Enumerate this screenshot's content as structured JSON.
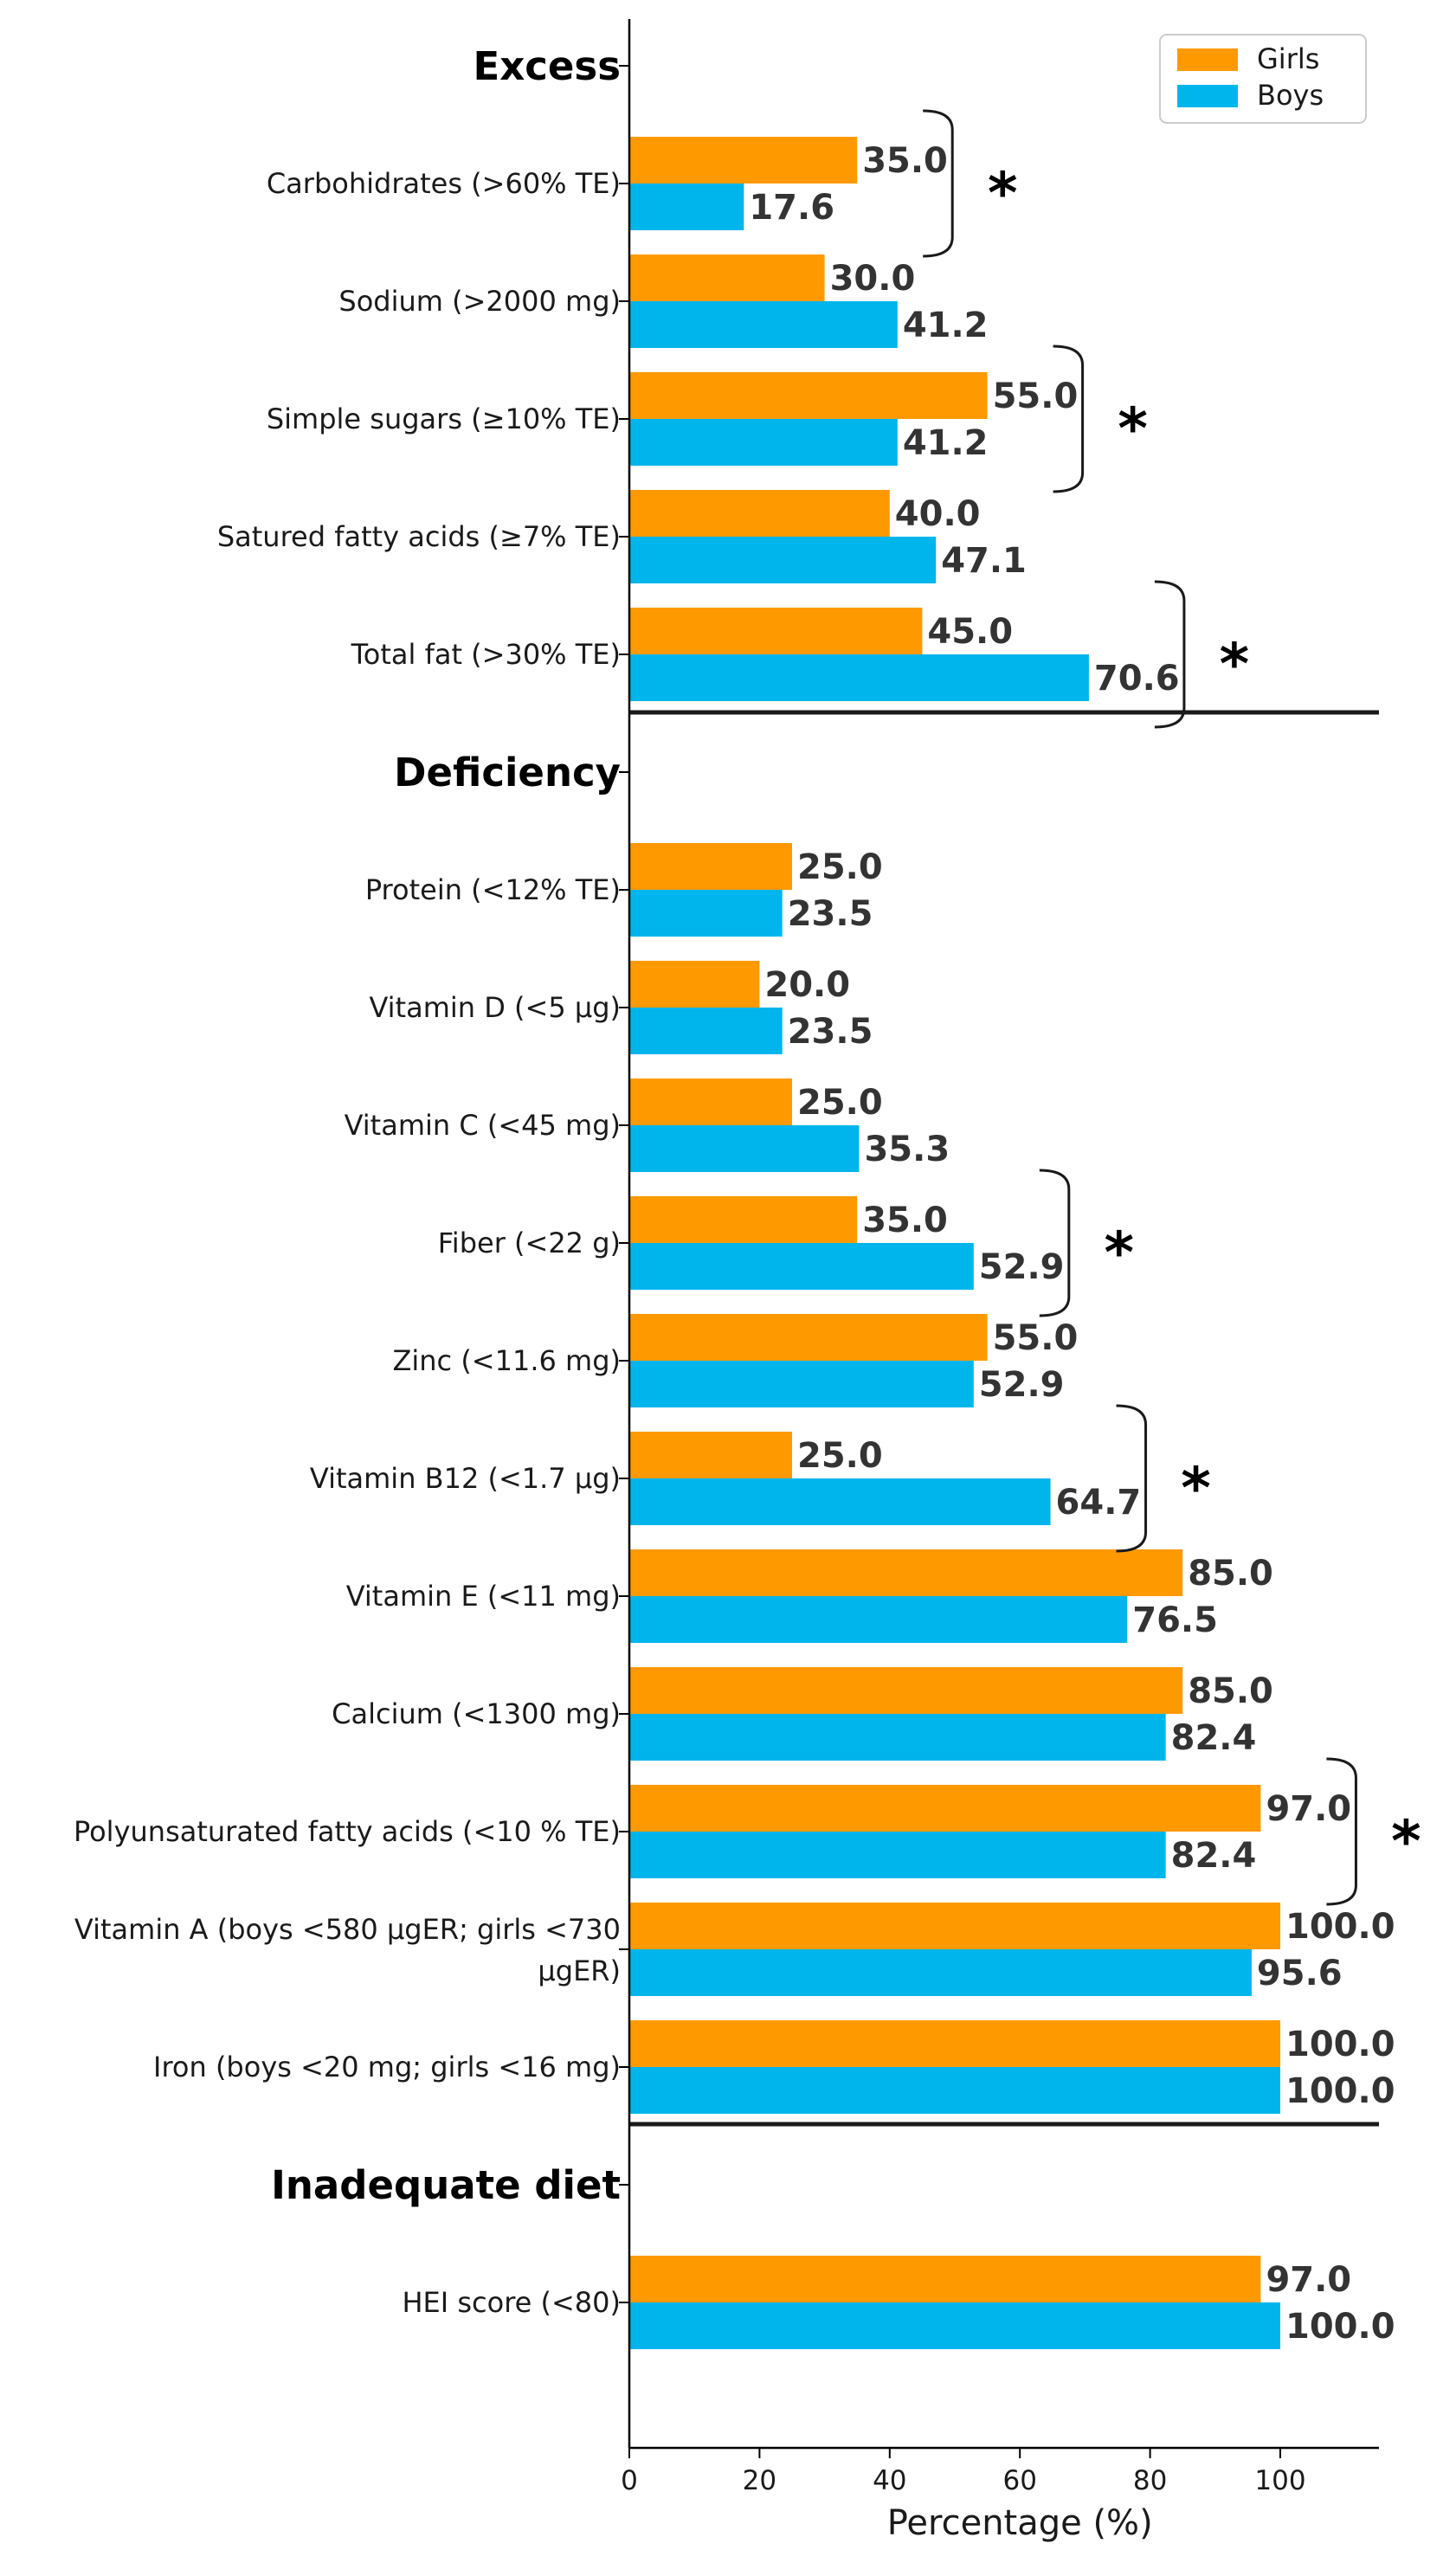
{
  "chart_data": {
    "type": "bar",
    "orientation": "horizontal",
    "xlabel": "Percentage (%)",
    "xlim": [
      0,
      115
    ],
    "xticks": [
      0,
      20,
      40,
      60,
      80,
      100
    ],
    "legend": {
      "position": "top-right",
      "entries": [
        {
          "name": "Girls",
          "color": "#FF9900"
        },
        {
          "name": "Boys",
          "color": "#00B5EC"
        }
      ]
    },
    "significance_marker": "*",
    "sections": [
      {
        "title": "Excess",
        "categories": [
          {
            "label": "Carbohidrates (>60% TE)",
            "girls": 35.0,
            "boys": 17.6,
            "girls_label": "35.0",
            "boys_label": "17.6",
            "significant": true
          },
          {
            "label": "Sodium (>2000 mg)",
            "girls": 30.0,
            "boys": 41.2,
            "girls_label": "30.0",
            "boys_label": "41.2",
            "significant": false
          },
          {
            "label": "Simple sugars (≥10% TE)",
            "girls": 55.0,
            "boys": 41.2,
            "girls_label": "55.0",
            "boys_label": "41.2",
            "significant": true
          },
          {
            "label": "Satured fatty acids (≥7% TE)",
            "girls": 40.0,
            "boys": 47.1,
            "girls_label": "40.0",
            "boys_label": "47.1",
            "significant": false
          },
          {
            "label": "Total fat (>30% TE)",
            "girls": 45.0,
            "boys": 70.6,
            "girls_label": "45.0",
            "boys_label": "70.6",
            "significant": true
          }
        ]
      },
      {
        "title": "Deficiency",
        "categories": [
          {
            "label": "Protein (<12% TE)",
            "girls": 25.0,
            "boys": 23.5,
            "girls_label": "25.0",
            "boys_label": "23.5",
            "significant": false
          },
          {
            "label": "Vitamin D (<5 µg)",
            "girls": 20.0,
            "boys": 23.5,
            "girls_label": "20.0",
            "boys_label": "23.5",
            "significant": false
          },
          {
            "label": "Vitamin C (<45 mg)",
            "girls": 25.0,
            "boys": 35.3,
            "girls_label": "25.0",
            "boys_label": "35.3",
            "significant": false
          },
          {
            "label": "Fiber (<22 g)",
            "girls": 35.0,
            "boys": 52.9,
            "girls_label": "35.0",
            "boys_label": "52.9",
            "significant": true
          },
          {
            "label": "Zinc (<11.6 mg)",
            "girls": 55.0,
            "boys": 52.9,
            "girls_label": "55.0",
            "boys_label": "52.9",
            "significant": false
          },
          {
            "label": "Vitamin B12 (<1.7 µg)",
            "girls": 25.0,
            "boys": 64.7,
            "girls_label": "25.0",
            "boys_label": "64.7",
            "significant": true
          },
          {
            "label": "Vitamin E (<11 mg)",
            "girls": 85.0,
            "boys": 76.5,
            "girls_label": "85.0",
            "boys_label": "76.5",
            "significant": false
          },
          {
            "label": "Calcium (<1300 mg)",
            "girls": 85.0,
            "boys": 82.4,
            "girls_label": "85.0",
            "boys_label": "82.4",
            "significant": false
          },
          {
            "label": "Polyunsaturated fatty acids (<10 % TE)",
            "girls": 97.0,
            "boys": 82.4,
            "girls_label": "97.0",
            "boys_label": "82.4",
            "significant": true
          },
          {
            "label": "Vitamin A (boys <580 µgER; girls <730",
            "label_line2": "µgER)",
            "girls": 100.0,
            "boys": 95.6,
            "girls_label": "100.0",
            "boys_label": "95.6",
            "significant": false
          },
          {
            "label": "Iron (boys <20 mg; girls <16 mg)",
            "girls": 100.0,
            "boys": 100.0,
            "girls_label": "100.0",
            "boys_label": "100.0",
            "significant": false
          }
        ]
      },
      {
        "title": "Inadequate diet",
        "categories": [
          {
            "label": "HEI score (<80)",
            "girls": 97.0,
            "boys": 100.0,
            "girls_label": "97.0",
            "boys_label": "100.0",
            "significant": false
          }
        ]
      }
    ]
  }
}
